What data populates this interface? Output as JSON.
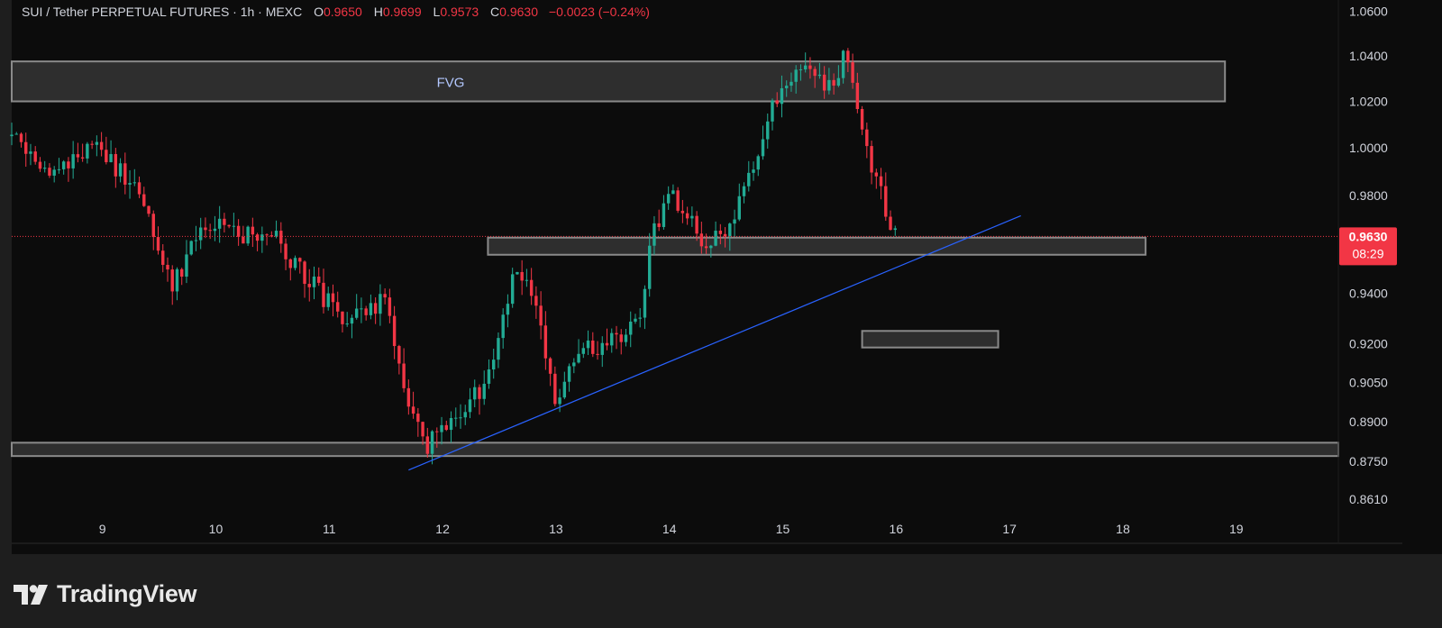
{
  "header": {
    "symbol": "SUI / Tether PERPETUAL FUTURES · 1h · MEXC",
    "open_label": "O",
    "open": "0.9650",
    "high_label": "H",
    "high": "0.9699",
    "low_label": "L",
    "low": "0.9573",
    "close_label": "C",
    "close": "0.9630",
    "change": "−0.0023 (−0.24%)"
  },
  "price_label": {
    "price": "0.9630",
    "countdown": "08:29"
  },
  "footer": {
    "brand": "TradingView"
  },
  "colors": {
    "up": "#22ab94",
    "down": "#f23645",
    "trendline": "#2962ff",
    "zone_fill": "#4a4a4a",
    "zone_border": "#8a8a8a",
    "background": "#0c0c0c"
  },
  "chart_data": {
    "type": "candlestick",
    "timeframe": "1h",
    "x_ticks": [
      "9",
      "10",
      "11",
      "12",
      "13",
      "14",
      "15",
      "16",
      "17",
      "18",
      "19"
    ],
    "y_ticks": [
      "1.0600",
      "1.0400",
      "1.0200",
      "1.0000",
      "0.9800",
      "0.9400",
      "0.9200",
      "0.9050",
      "0.8900",
      "0.8750",
      "0.8610"
    ],
    "y_scale": "log",
    "ylim": [
      0.8525,
      1.065
    ],
    "xlim_days": [
      8.2,
      19.9
    ],
    "current_price": 0.963,
    "path_anchors": [
      [
        8.2,
        1.005
      ],
      [
        8.5,
        0.99
      ],
      [
        8.9,
        1.0
      ],
      [
        9.3,
        0.985
      ],
      [
        9.6,
        0.944
      ],
      [
        9.9,
        0.965
      ],
      [
        10.1,
        0.97
      ],
      [
        10.3,
        0.962
      ],
      [
        10.5,
        0.965
      ],
      [
        10.8,
        0.945
      ],
      [
        11.2,
        0.928
      ],
      [
        11.5,
        0.938
      ],
      [
        11.7,
        0.895
      ],
      [
        11.85,
        0.878
      ],
      [
        12.0,
        0.89
      ],
      [
        12.4,
        0.905
      ],
      [
        12.65,
        0.953
      ],
      [
        12.85,
        0.93
      ],
      [
        13.0,
        0.898
      ],
      [
        13.2,
        0.915
      ],
      [
        13.5,
        0.922
      ],
      [
        13.75,
        0.928
      ],
      [
        13.85,
        0.965
      ],
      [
        14.0,
        0.98
      ],
      [
        14.15,
        0.975
      ],
      [
        14.3,
        0.962
      ],
      [
        14.5,
        0.963
      ],
      [
        14.7,
        0.985
      ],
      [
        14.85,
        1.01
      ],
      [
        15.0,
        1.03
      ],
      [
        15.2,
        1.035
      ],
      [
        15.4,
        1.025
      ],
      [
        15.55,
        1.04
      ],
      [
        15.65,
        1.022
      ],
      [
        15.8,
        0.99
      ],
      [
        16.0,
        0.963
      ]
    ],
    "zones": [
      {
        "label": "FVG",
        "x1": 8.2,
        "x2": 18.9,
        "y_low": 1.02,
        "y_high": 1.0375
      },
      {
        "label": "",
        "x1": 12.4,
        "x2": 18.2,
        "y_low": 0.9555,
        "y_high": 0.9625
      },
      {
        "label": "",
        "x1": 15.7,
        "x2": 16.9,
        "y_low": 0.9185,
        "y_high": 0.925
      },
      {
        "label": "",
        "x1": 8.2,
        "x2": 19.9,
        "y_low": 0.877,
        "y_high": 0.882
      }
    ],
    "trendline": {
      "x1": 11.7,
      "y1": 0.8718,
      "x2": 17.1,
      "y2": 0.9715
    }
  }
}
